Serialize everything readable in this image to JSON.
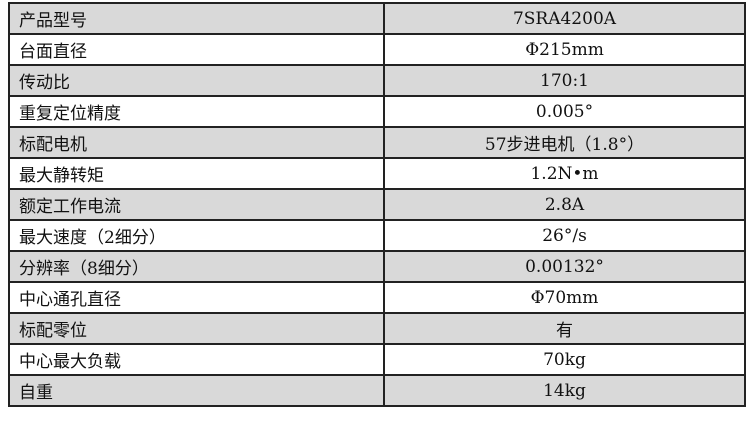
{
  "rows": [
    {
      "label": "产品型号",
      "value": "7SRA4200A"
    },
    {
      "label": "台面直径",
      "value": "Φ215mm"
    },
    {
      "label": "传动比",
      "value": "170:1"
    },
    {
      "label": "重复定位精度",
      "value": "0.005°"
    },
    {
      "label": "标配电机",
      "value": "57步进电机（1.8°）"
    },
    {
      "label": "最大静转矩",
      "value": "1.2N•m"
    },
    {
      "label": "额定工作电流",
      "value": "2.8A"
    },
    {
      "label": "最大速度（2细分）",
      "value": "26°/s"
    },
    {
      "label": "分辨率（8细分）",
      "value": "0.00132°"
    },
    {
      "label": "中心通孔直径",
      "value": "Φ70mm"
    },
    {
      "label": "标配零位",
      "value": "有"
    },
    {
      "label": "中心最大负载",
      "value": "70kg"
    },
    {
      "label": "自重",
      "value": "14kg"
    }
  ],
  "colors": {
    "stripe": "#d9d9d9",
    "border": "#222222"
  }
}
